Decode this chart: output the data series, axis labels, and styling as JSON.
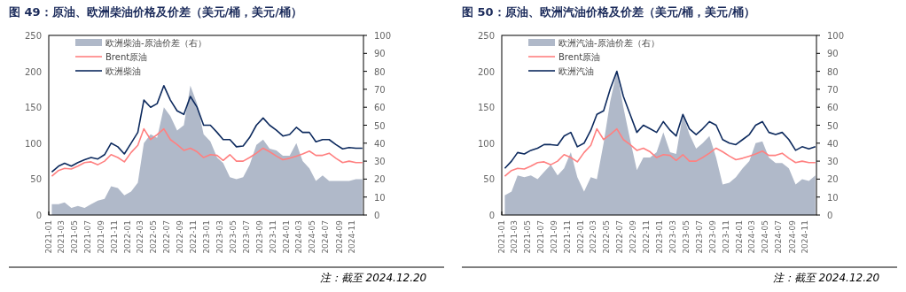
{
  "chart_data": [
    {
      "type": "line",
      "title": "图 49：原油、欧洲柴油价格及价差（美元/桶，美元/桶）",
      "annotations": [
        "注：截至 2024.12.20"
      ],
      "legend": "top left",
      "grid": false,
      "x": [
        "2021-01-15",
        "2021-02-15",
        "2021-03-15",
        "2021-04-15",
        "2021-05-15",
        "2021-06-15",
        "2021-07-15",
        "2021-08-15",
        "2021-09-15",
        "2021-10-15",
        "2021-11-15",
        "2021-12-15",
        "2022-01-15",
        "2022-02-15",
        "2022-03-15",
        "2022-04-15",
        "2022-05-15",
        "2022-06-15",
        "2022-07-15",
        "2022-08-15",
        "2022-09-15",
        "2022-10-15",
        "2022-11-15",
        "2022-12-15",
        "2023-01-15",
        "2023-02-15",
        "2023-03-15",
        "2023-04-15",
        "2023-05-15",
        "2023-06-15",
        "2023-07-15",
        "2023-08-15",
        "2023-09-15",
        "2023-10-15",
        "2023-11-15",
        "2023-12-15",
        "2024-01-15",
        "2024-02-15",
        "2024-03-15",
        "2024-04-15",
        "2024-05-15",
        "2024-06-15",
        "2024-07-15",
        "2024-08-15",
        "2024-09-15",
        "2024-10-15",
        "2024-11-15",
        "2024-12-15"
      ],
      "xlim": [
        "2021-01-01",
        "2024-12-20"
      ],
      "xticks": [
        "2021-01",
        "2021-03",
        "2021-05",
        "2021-07",
        "2021-09",
        "2021-11",
        "2022-01",
        "2022-03",
        "2022-05",
        "2022-07",
        "2022-09",
        "2022-11",
        "2023-01",
        "2023-03",
        "2023-05",
        "2023-07",
        "2023-09",
        "2023-11",
        "2024-01",
        "2024-03",
        "2024-05",
        "2024-07",
        "2024-09",
        "2024-11"
      ],
      "ylim": [
        0,
        250
      ],
      "yticks": [
        0,
        50,
        100,
        150,
        200,
        250
      ],
      "y2lim": [
        0,
        100
      ],
      "y2ticks": [
        0,
        10,
        20,
        30,
        40,
        50,
        60,
        70,
        80,
        90,
        100
      ],
      "series": [
        {
          "name": "欧洲柴油-原油价差（右）",
          "type": "area",
          "axis": "y2",
          "color": "#b0b9c9",
          "values": [
            6,
            6,
            7,
            4,
            5,
            4,
            6,
            8,
            9,
            16,
            15,
            11,
            13,
            18,
            40,
            45,
            43,
            60,
            55,
            47,
            50,
            72,
            62,
            45,
            41,
            32,
            29,
            21,
            20,
            21,
            28,
            39,
            42,
            37,
            36,
            33,
            33,
            40,
            30,
            26,
            19,
            22,
            19,
            19,
            19,
            19,
            20,
            20
          ]
        },
        {
          "name": "Brent原油",
          "type": "line",
          "color": "#ff8080",
          "values": [
            54,
            62,
            65,
            64,
            68,
            73,
            74,
            70,
            75,
            84,
            80,
            74,
            87,
            97,
            120,
            105,
            112,
            120,
            105,
            98,
            90,
            93,
            88,
            80,
            84,
            83,
            76,
            84,
            75,
            75,
            80,
            86,
            93,
            88,
            82,
            77,
            79,
            82,
            85,
            89,
            83,
            83,
            86,
            79,
            73,
            75,
            73,
            73
          ]
        },
        {
          "name": "欧洲柴油",
          "type": "line",
          "color": "#0d2a5e",
          "values": [
            60,
            68,
            72,
            68,
            73,
            77,
            80,
            78,
            84,
            100,
            95,
            85,
            100,
            115,
            160,
            150,
            155,
            180,
            160,
            145,
            140,
            165,
            150,
            125,
            125,
            115,
            105,
            105,
            95,
            96,
            108,
            125,
            135,
            125,
            118,
            110,
            112,
            122,
            115,
            115,
            102,
            105,
            105,
            98,
            92,
            94,
            93,
            93
          ]
        }
      ]
    },
    {
      "type": "line",
      "title": "图 50：原油、欧洲汽油价格及价差（美元/桶，美元/桶）",
      "annotations": [
        "注：截至 2024.12.20"
      ],
      "legend": "top left",
      "grid": false,
      "x": [
        "2021-01-15",
        "2021-02-15",
        "2021-03-15",
        "2021-04-15",
        "2021-05-15",
        "2021-06-15",
        "2021-07-15",
        "2021-08-15",
        "2021-09-15",
        "2021-10-15",
        "2021-11-15",
        "2021-12-15",
        "2022-01-15",
        "2022-02-15",
        "2022-03-15",
        "2022-04-15",
        "2022-05-15",
        "2022-06-15",
        "2022-07-15",
        "2022-08-15",
        "2022-09-15",
        "2022-10-15",
        "2022-11-15",
        "2022-12-15",
        "2023-01-15",
        "2023-02-15",
        "2023-03-15",
        "2023-04-15",
        "2023-05-15",
        "2023-06-15",
        "2023-07-15",
        "2023-08-15",
        "2023-09-15",
        "2023-10-15",
        "2023-11-15",
        "2023-12-15",
        "2024-01-15",
        "2024-02-15",
        "2024-03-15",
        "2024-04-15",
        "2024-05-15",
        "2024-06-15",
        "2024-07-15",
        "2024-08-15",
        "2024-09-15",
        "2024-10-15",
        "2024-11-15",
        "2024-12-15"
      ],
      "xlim": [
        "2021-01-01",
        "2024-12-20"
      ],
      "xticks": [
        "2021-01",
        "2021-03",
        "2021-05",
        "2021-07",
        "2021-09",
        "2021-11",
        "2022-01",
        "2022-03",
        "2022-05",
        "2022-07",
        "2022-09",
        "2022-11",
        "2023-01",
        "2023-03",
        "2023-05",
        "2023-07",
        "2023-09",
        "2023-11",
        "2024-01",
        "2024-03",
        "2024-05",
        "2024-07",
        "2024-09",
        "2024-11"
      ],
      "ylim": [
        0,
        250
      ],
      "yticks": [
        0,
        50,
        100,
        150,
        200,
        250
      ],
      "y2lim": [
        0,
        100
      ],
      "y2ticks": [
        0,
        10,
        20,
        30,
        40,
        50,
        60,
        70,
        80,
        90,
        100
      ],
      "series": [
        {
          "name": "欧洲汽油-原油价差（右）",
          "type": "area",
          "axis": "y2",
          "color": "#b0b9c9",
          "values": [
            11,
            13,
            22,
            21,
            22,
            20,
            24,
            28,
            22,
            26,
            35,
            21,
            13,
            21,
            20,
            40,
            63,
            80,
            60,
            42,
            25,
            32,
            32,
            35,
            46,
            35,
            34,
            56,
            45,
            37,
            40,
            44,
            32,
            17,
            18,
            21,
            26,
            30,
            40,
            41,
            32,
            29,
            29,
            26,
            17,
            20,
            19,
            22
          ]
        },
        {
          "name": "Brent原油",
          "type": "line",
          "color": "#ff8080",
          "values": [
            54,
            62,
            65,
            64,
            68,
            73,
            74,
            70,
            75,
            84,
            80,
            74,
            87,
            97,
            120,
            105,
            112,
            120,
            105,
            98,
            90,
            93,
            88,
            80,
            84,
            83,
            76,
            84,
            75,
            75,
            80,
            86,
            93,
            88,
            82,
            77,
            79,
            82,
            85,
            89,
            83,
            83,
            86,
            79,
            73,
            75,
            73,
            73
          ]
        },
        {
          "name": "欧洲汽油",
          "type": "line",
          "color": "#0d2a5e",
          "values": [
            65,
            75,
            87,
            85,
            90,
            93,
            98,
            98,
            97,
            110,
            115,
            95,
            100,
            118,
            140,
            145,
            175,
            200,
            165,
            140,
            115,
            125,
            120,
            115,
            130,
            118,
            110,
            140,
            120,
            112,
            120,
            130,
            125,
            105,
            100,
            98,
            105,
            112,
            125,
            130,
            115,
            112,
            115,
            105,
            90,
            95,
            92,
            95
          ]
        }
      ]
    }
  ]
}
